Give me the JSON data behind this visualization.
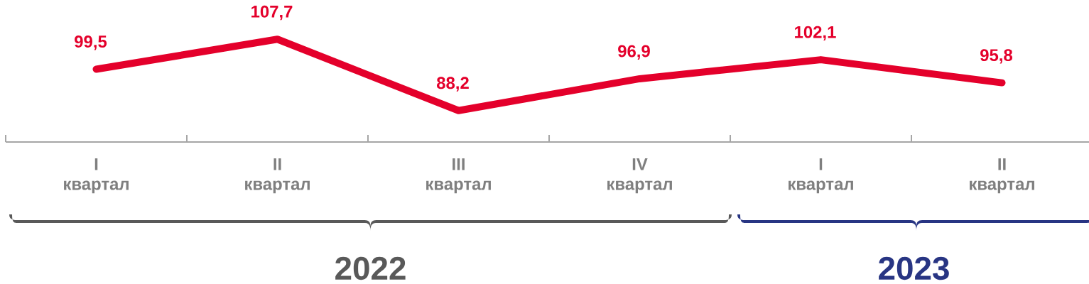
{
  "chart_data": {
    "type": "line",
    "categories": [
      "I квартал",
      "II квартал",
      "III квартал",
      "IV квартал",
      "I квартал",
      "II квартал"
    ],
    "values": [
      99.5,
      107.7,
      88.2,
      96.9,
      102.1,
      95.8
    ],
    "color": "#e4002b",
    "data_labels": true,
    "value_labels": [
      "99,5",
      "107,7",
      "88,2",
      "96,9",
      "102,1",
      "95,8"
    ],
    "annotations": [
      "2022",
      "2023"
    ]
  }
}
